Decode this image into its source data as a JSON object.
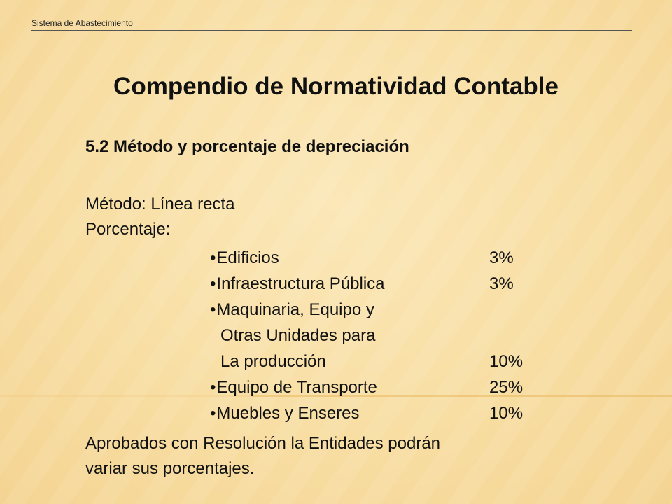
{
  "header": {
    "text": "Sistema de Abastecimiento"
  },
  "title": "Compendio de Normatividad Contable",
  "section_heading": "5.2 Método y porcentaje de depreciación",
  "metodo": "Método: Línea recta",
  "porcentaje_label": "Porcentaje:",
  "items": [
    {
      "label": "Edificios",
      "percent": "3%"
    },
    {
      "label": "Infraestructura Pública",
      "percent": "3%"
    },
    {
      "label_lines": [
        "Maquinaria, Equipo y",
        "Otras Unidades para",
        "La producción"
      ],
      "percent": "10%"
    },
    {
      "label": "Equipo de Transporte",
      "percent": "25%"
    },
    {
      "label": "Muebles y Enseres",
      "percent": "10%"
    }
  ],
  "footer_lines": [
    "Aprobados con Resolución la Entidades podrán",
    "variar sus porcentajes."
  ],
  "colors": {
    "background": "#f8dea3",
    "text": "#111111"
  }
}
